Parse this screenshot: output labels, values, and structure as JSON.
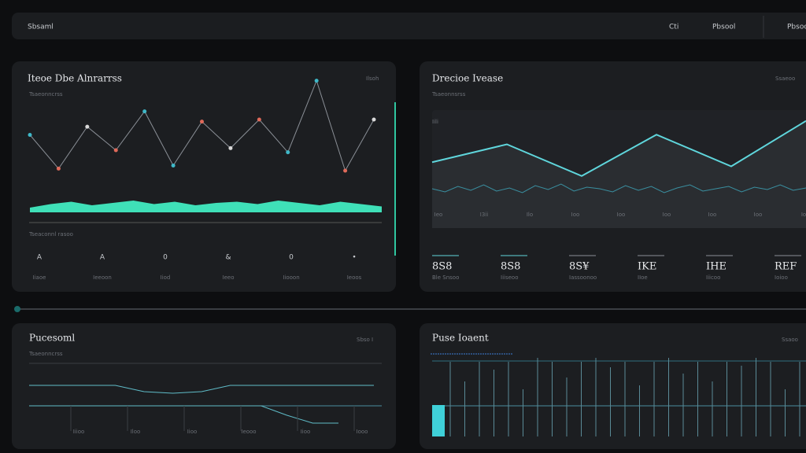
{
  "topbar": {
    "title": "Sbsaml",
    "items": [
      "Cti",
      "Pbsool",
      "Pbsoo"
    ]
  },
  "panels": [
    {
      "title": "Iteoe Dbe Alnrarrss",
      "meta": "Ilsoh",
      "subtitle": "Tsaeonncrss",
      "footer": "Tseaconnl rasoo",
      "line": [
        45,
        12,
        53,
        30,
        68,
        15,
        58,
        32,
        60,
        28,
        98,
        10,
        60
      ],
      "wave": [
        4,
        7,
        9,
        6,
        8,
        10,
        7,
        9,
        6,
        8,
        9,
        7,
        10,
        8,
        6,
        9,
        7,
        5
      ],
      "icons": [
        "A",
        "A",
        "0",
        "&",
        "0",
        "•"
      ],
      "icon_labels": [
        "Iiaoe",
        "Ieeoon",
        "Iiod",
        "Ieeo",
        "Iiooon",
        "Ieoos"
      ]
    },
    {
      "title": "Drecioe Ivease",
      "meta": "Ssaeoo",
      "subtitle": "Tsaeonnsrss",
      "axis_label": "Iili",
      "line": [
        45,
        58,
        35,
        65,
        42,
        75
      ],
      "noise": [
        30,
        26,
        33,
        28,
        35,
        27,
        31,
        25,
        34,
        29,
        36,
        27,
        32,
        30,
        26,
        34,
        28,
        33,
        25,
        31,
        35,
        27,
        30,
        33,
        26,
        32,
        29,
        35,
        28,
        31
      ],
      "x_labels": [
        "Ieo",
        "I3ii",
        "Ilo",
        "Ioo",
        "Ioo",
        "Ioo",
        "Ioo",
        "Ioo",
        "Io"
      ],
      "kpis": [
        "8S8",
        "8S8",
        "8S¥",
        "IKE",
        "IHE",
        "REF"
      ],
      "kpi_labels": [
        "Ble Snsoo",
        "Iiiseoo",
        "Iassoonoo",
        "IIoe",
        "Iiicoo",
        "Ioioo"
      ]
    },
    {
      "title": "Pucesoml",
      "meta": "Sbso I",
      "subtitle": "Tsaeonncrss",
      "a": [
        50,
        50,
        50,
        50,
        42,
        40,
        42,
        50,
        50,
        50,
        50,
        50,
        50
      ],
      "b": [
        20,
        20,
        20,
        20,
        20,
        20,
        20,
        20,
        20,
        20,
        8,
        -2,
        -2
      ],
      "x_labels": [
        "Iiioo",
        "Iloo",
        "Iioo",
        "Ieooo",
        "Iioo",
        "Iooo"
      ]
    },
    {
      "title": "Puse Ioaent",
      "meta": "Ssaoo",
      "bars": [
        95,
        70,
        95,
        85,
        95,
        60,
        100,
        95,
        75,
        95,
        100,
        88,
        95,
        65,
        95,
        100,
        80,
        95,
        70,
        95,
        90,
        100,
        95,
        60,
        95
      ]
    }
  ]
}
